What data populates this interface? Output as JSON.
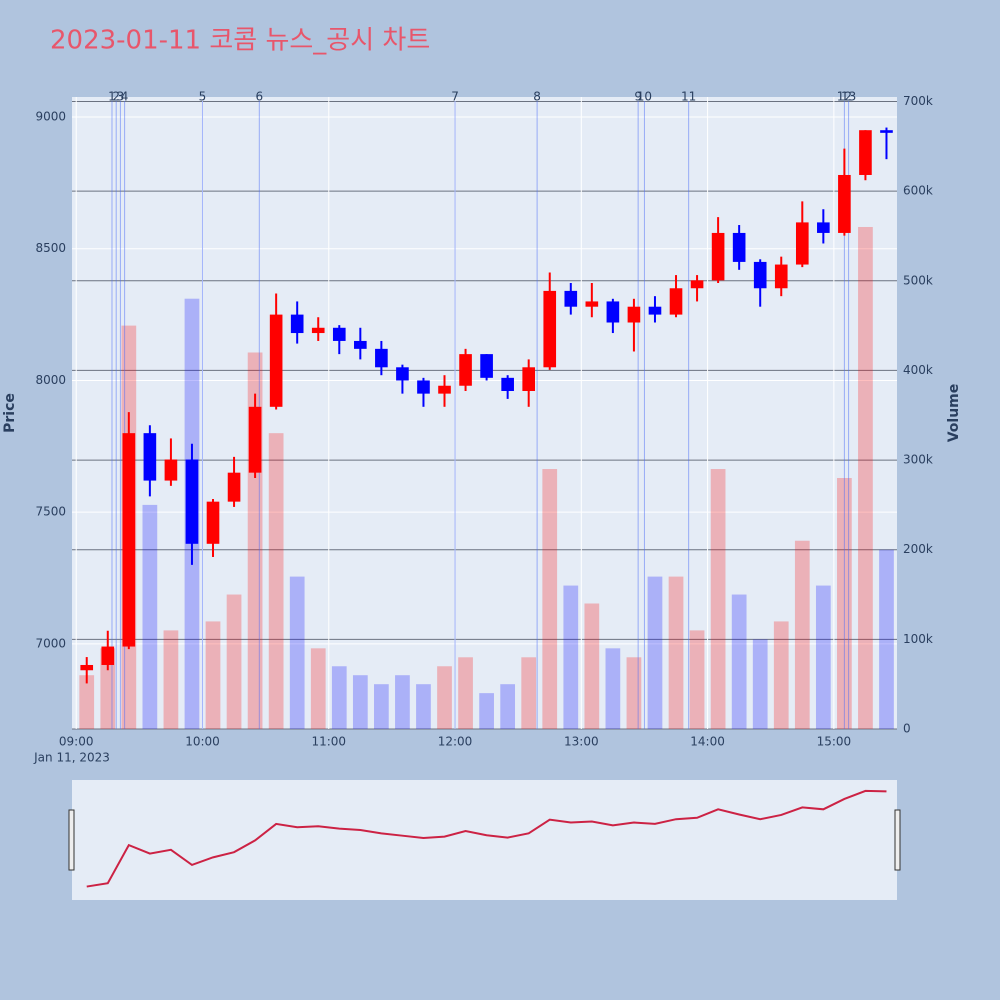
{
  "chart_data": {
    "type": "candlestick",
    "title": "2023-01-11 코콤 뉴스_공시 차트",
    "x": [
      "2023-01-11 09:00",
      "2023-01-11 09:10",
      "2023-01-11 09:20",
      "2023-01-11 09:30",
      "2023-01-11 09:40",
      "2023-01-11 09:50",
      "2023-01-11 10:00",
      "2023-01-11 10:10",
      "2023-01-11 10:20",
      "2023-01-11 10:30",
      "2023-01-11 10:40",
      "2023-01-11 10:50",
      "2023-01-11 11:00",
      "2023-01-11 11:10",
      "2023-01-11 11:20",
      "2023-01-11 11:30",
      "2023-01-11 11:40",
      "2023-01-11 11:50",
      "2023-01-11 12:00",
      "2023-01-11 12:10",
      "2023-01-11 12:20",
      "2023-01-11 12:30",
      "2023-01-11 12:40",
      "2023-01-11 12:50",
      "2023-01-11 13:00",
      "2023-01-11 13:10",
      "2023-01-11 13:20",
      "2023-01-11 13:30",
      "2023-01-11 13:40",
      "2023-01-11 13:50",
      "2023-01-11 14:00",
      "2023-01-11 14:10",
      "2023-01-11 14:20",
      "2023-01-11 14:30",
      "2023-01-11 14:40",
      "2023-01-11 14:50",
      "2023-01-11 15:00",
      "2023-01-11 15:10",
      "2023-01-11 15:20"
    ],
    "open": [
      6900,
      6920,
      6990,
      7800,
      7620,
      7700,
      7380,
      7540,
      7650,
      7900,
      8250,
      8180,
      8200,
      8150,
      8120,
      8050,
      8000,
      7950,
      7980,
      8100,
      8010,
      7960,
      8050,
      8340,
      8280,
      8300,
      8220,
      8280,
      8250,
      8350,
      8380,
      8560,
      8450,
      8350,
      8440,
      8600,
      8560,
      8780,
      8950
    ],
    "high": [
      6950,
      7050,
      7880,
      7830,
      7780,
      7760,
      7550,
      7710,
      7950,
      8330,
      8300,
      8240,
      8210,
      8200,
      8150,
      8060,
      8010,
      8020,
      8120,
      8100,
      8020,
      8080,
      8410,
      8370,
      8370,
      8310,
      8310,
      8320,
      8400,
      8400,
      8620,
      8590,
      8460,
      8470,
      8680,
      8650,
      8880,
      8950,
      8960
    ],
    "low": [
      6850,
      6900,
      6980,
      7560,
      7600,
      7300,
      7330,
      7520,
      7630,
      7890,
      8140,
      8150,
      8100,
      8080,
      8020,
      7950,
      7900,
      7900,
      7960,
      8000,
      7930,
      7900,
      8040,
      8250,
      8240,
      8180,
      8110,
      8220,
      8240,
      8300,
      8370,
      8420,
      8280,
      8320,
      8430,
      8520,
      8550,
      8760,
      8840
    ],
    "close": [
      6920,
      6990,
      7800,
      7620,
      7700,
      7380,
      7540,
      7650,
      7900,
      8250,
      8180,
      8200,
      8150,
      8120,
      8050,
      8000,
      7950,
      7980,
      8100,
      8010,
      7960,
      8050,
      8340,
      8280,
      8300,
      8220,
      8280,
      8250,
      8350,
      8380,
      8560,
      8450,
      8350,
      8440,
      8600,
      8560,
      8780,
      8950,
      8940
    ],
    "volume": [
      60000,
      90000,
      450000,
      250000,
      110000,
      480000,
      120000,
      150000,
      420000,
      330000,
      170000,
      90000,
      70000,
      60000,
      50000,
      60000,
      50000,
      70000,
      80000,
      40000,
      50000,
      80000,
      290000,
      160000,
      140000,
      90000,
      80000,
      170000,
      170000,
      110000,
      290000,
      150000,
      100000,
      120000,
      210000,
      160000,
      280000,
      560000,
      200000
    ],
    "increasing_color": "#ff0000",
    "decreasing_color": "#0000ff",
    "xlim": [
      "2023-01-11 08:58",
      "2023-01-11 15:30"
    ],
    "xticks": [
      {
        "value": "2023-01-11 09:00",
        "label": "09:00"
      },
      {
        "value": "2023-01-11 10:00",
        "label": "10:00"
      },
      {
        "value": "2023-01-11 11:00",
        "label": "11:00"
      },
      {
        "value": "2023-01-11 12:00",
        "label": "12:00"
      },
      {
        "value": "2023-01-11 13:00",
        "label": "13:00"
      },
      {
        "value": "2023-01-11 14:00",
        "label": "14:00"
      },
      {
        "value": "2023-01-11 15:00",
        "label": "15:00"
      }
    ],
    "x_date_label": "Jan 11, 2023",
    "ylabel": "Price",
    "y2label": "Volume",
    "ylim": [
      6677,
      9076
    ],
    "yticks": [
      7000,
      7500,
      8000,
      8500,
      9000
    ],
    "y2lim": [
      0,
      705000
    ],
    "y2ticks": [
      0,
      {
        "value": 100000,
        "label": "100k"
      },
      {
        "value": 200000,
        "label": "200k"
      },
      {
        "value": 300000,
        "label": "300k"
      },
      {
        "value": 400000,
        "label": "400k"
      },
      {
        "value": 500000,
        "label": "500k"
      },
      {
        "value": 600000,
        "label": "600k"
      },
      {
        "value": 700000,
        "label": "700k"
      }
    ],
    "annotations": [
      {
        "x": "2023-01-11 09:17",
        "label": "1"
      },
      {
        "x": "2023-01-11 09:19",
        "label": "2"
      },
      {
        "x": "2023-01-11 09:21",
        "label": "3"
      },
      {
        "x": "2023-01-11 09:23",
        "label": "4"
      },
      {
        "x": "2023-01-11 10:00",
        "label": "5"
      },
      {
        "x": "2023-01-11 10:27",
        "label": "6"
      },
      {
        "x": "2023-01-11 12:00",
        "label": "7"
      },
      {
        "x": "2023-01-11 12:39",
        "label": "8"
      },
      {
        "x": "2023-01-11 13:27",
        "label": "9"
      },
      {
        "x": "2023-01-11 13:30",
        "label": "10"
      },
      {
        "x": "2023-01-11 13:51",
        "label": "11"
      },
      {
        "x": "2023-01-11 15:05",
        "label": "12"
      },
      {
        "x": "2023-01-11 15:07",
        "label": "13"
      }
    ]
  }
}
